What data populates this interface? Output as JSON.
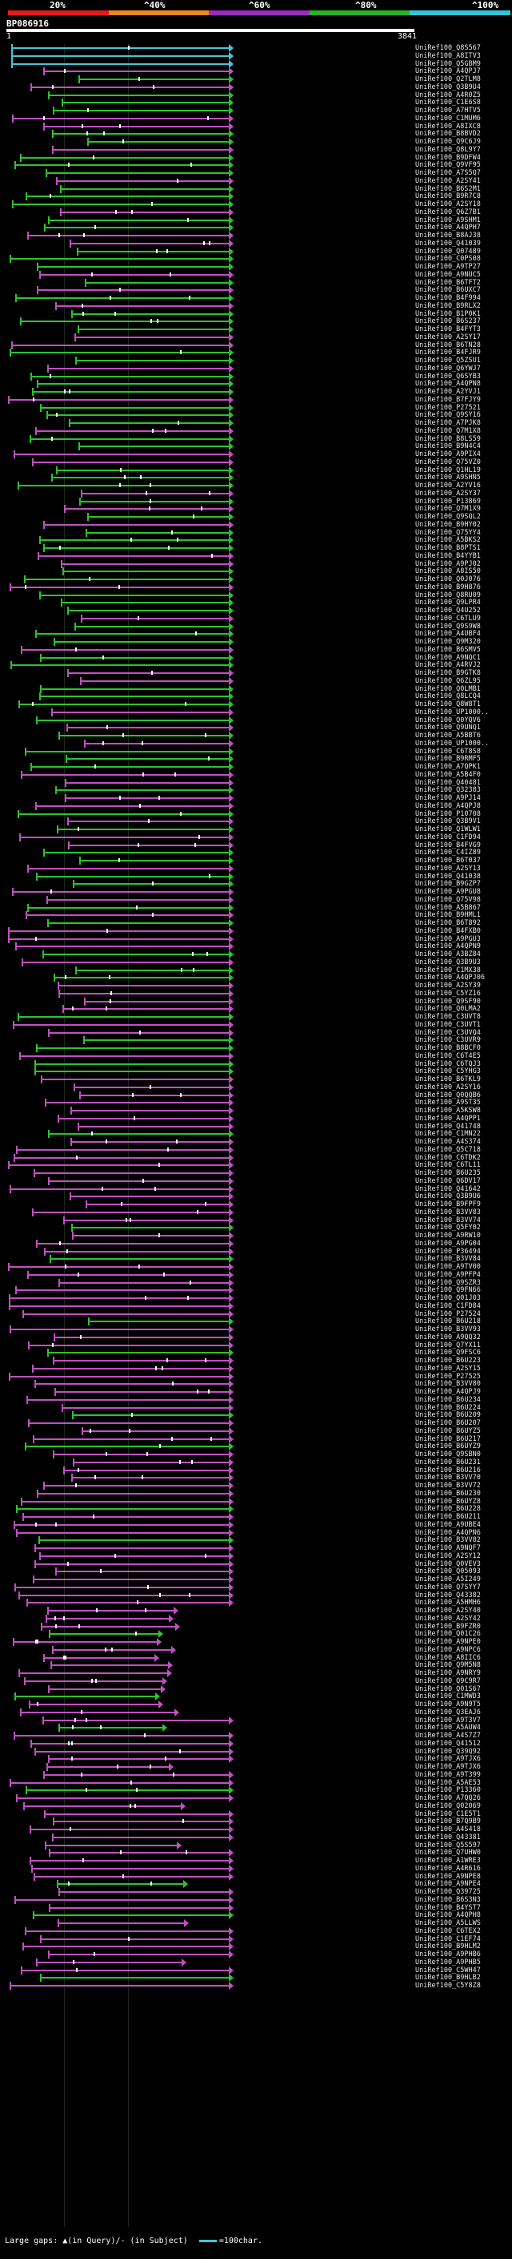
{
  "legend": {
    "labels": [
      "20%",
      "^40%",
      "^60%",
      "^80%",
      "^100%"
    ],
    "colors": [
      "#e21b1b",
      "#e8891c",
      "#9b2bbd",
      "#26b326",
      "#2fc6d8"
    ]
  },
  "query": {
    "title": "BP086916",
    "scale_start": "1",
    "scale_end": "3841"
  },
  "hits": [
    "UniRef100_Q8S567",
    "UniRef100_A8ITV3",
    "UniRef100_Q5GBM9",
    "UniRef100_A4QPJ7",
    "UniRef100_Q2TLM8",
    "UniRef100_Q3B9U4",
    "UniRef100_A4R0Z5",
    "UniRef100_C1E6S8",
    "UniRef100_A7HTV5",
    "UniRef100_C1MUM6",
    "UniRef100_A8IXC8",
    "UniRef100_B8BVD2",
    "UniRef100_Q9C6J9",
    "UniRef100_Q8L9Y7",
    "UniRef100_B9DFW4",
    "UniRef100_Q9VF95",
    "UniRef100_A7S5Q7",
    "UniRef100_A2SY41",
    "UniRef100_B6S2M1",
    "UniRef100_B9R7C8",
    "UniRef100_A2SY18",
    "UniRef100_Q6Z7B1",
    "UniRef100_A9SHM1",
    "UniRef100_A4QPH7",
    "UniRef100_B8AJ38",
    "UniRef100_Q41039",
    "UniRef100_Q07489",
    "UniRef100_C0PS08",
    "UniRef100_A9TP27",
    "UniRef100_A9NUC5",
    "UniRef100_B6TFT2",
    "UniRef100_B6UXC7",
    "UniRef100_B4F994",
    "UniRef100_B9RLX2",
    "UniRef100_B1P0K1",
    "UniRef100_B6S237",
    "UniRef100_B4FYT3",
    "UniRef100_A2SY17",
    "UniRef100_B6TN28",
    "UniRef100_B4FJR9",
    "UniRef100_Q5ZSU1",
    "UniRef100_Q6YWJ7",
    "UniRef100_Q6SYB3",
    "UniRef100_A4QPN8",
    "UniRef100_A2YVJ1",
    "UniRef100_B7FJY9",
    "UniRef100_P27521",
    "UniRef100_Q9SY16",
    "UniRef100_A7PJK8",
    "UniRef100_Q7M1X8",
    "UniRef100_B8LS59",
    "UniRef100_B9N4C4",
    "UniRef100_A9PIX4",
    "UniRef100_Q75VZ0",
    "UniRef100_Q1HL19",
    "UniRef100_A9SHN5",
    "UniRef100_A2YV16",
    "UniRef100_A2SY37",
    "UniRef100_P13869",
    "UniRef100_Q7M1X9",
    "UniRef100_Q9SQL2",
    "UniRef100_B9HY02",
    "UniRef100_Q75YY4",
    "UniRef100_A5BKS2",
    "UniRef100_B8PTS1",
    "UniRef100_B4YYB1",
    "UniRef100_A9PJ02",
    "UniRef100_A8IS50",
    "UniRef100_Q0J076",
    "UniRef100_B9H876",
    "UniRef100_Q8RU09",
    "UniRef100_Q9LPR4",
    "UniRef100_Q4U252",
    "UniRef100_C6TLU9",
    "UniRef100_Q9S9W8",
    "UniRef100_A4UBF4",
    "UniRef100_Q9M320",
    "UniRef100_B6SMV5",
    "UniRef100_A9NQC1",
    "UniRef100_A4RVJ2",
    "UniRef100_B9GTK8",
    "UniRef100_Q6ZL95",
    "UniRef100_Q0LMB1",
    "UniRef100_Q8LCQ4",
    "UniRef100_Q8W8T1",
    "UniRef100_UP1000..",
    "UniRef100_Q0YQV6",
    "UniRef100_Q9UNQ1",
    "UniRef100_A5BBT6",
    "UniRef100_UP1000..",
    "UniRef100_C6T8S8",
    "UniRef100_B9RMF5",
    "UniRef100_A7QPK1",
    "UniRef100_A5B4F0",
    "UniRef100_Q40481",
    "UniRef100_Q32383",
    "UniRef100_A9PJ14",
    "UniRef100_A4QPJ8",
    "UniRef100_P10708",
    "UniRef100_Q3B9V1",
    "UniRef100_Q1WLW1",
    "UniRef100_C1FD94",
    "UniRef100_B4FVG9",
    "UniRef100_C4IZ89",
    "UniRef100_B6T037",
    "UniRef100_A2SY13",
    "UniRef100_Q41038",
    "UniRef100_B9GZP7",
    "UniRef100_A9PGU8",
    "UniRef100_Q75V98",
    "UniRef100_A5B867",
    "UniRef100_B9HML1",
    "UniRef100_B6T892",
    "UniRef100_B4FXB0",
    "UniRef100_A9PGU3",
    "UniRef100_A4QPN9",
    "UniRef100_A3BZ84",
    "UniRef100_Q3B9U3",
    "UniRef100_C1MX38",
    "UniRef100_A4QPJ06",
    "UniRef100_A2SY39",
    "UniRef100_C5YZ16",
    "UniRef100_Q9SF90",
    "UniRef100_Q0LMA2",
    "UniRef100_C3UVT8",
    "UniRef100_C3UVT1",
    "UniRef100_C3UVQ4",
    "UniRef100_C3UVR9",
    "UniRef100_B8BCF0",
    "UniRef100_C6T4E5",
    "UniRef100_C6TQJ3",
    "UniRef100_C5YHG3",
    "UniRef100_B6TKL9",
    "UniRef100_A2SY16",
    "UniRef100_Q0QQB6",
    "UniRef100_A9ST35",
    "UniRef100_A5KSW8",
    "UniRef100_A4QPP1",
    "UniRef100_Q41748",
    "UniRef100_C1MN22",
    "UniRef100_A4S374",
    "UniRef100_Q5C718",
    "UniRef100_C6TDK2",
    "UniRef100_C6TL11",
    "UniRef100_B6U235",
    "UniRef100_Q6DV17",
    "UniRef100_Q41642",
    "UniRef100_Q3B9U6",
    "UniRef100_B9FPF9",
    "UniRef100_B3VV83",
    "UniRef100_B3VV74",
    "UniRef100_Q5FY02",
    "UniRef100_A9RW10",
    "UniRef100_A9PG04",
    "UniRef100_P36494",
    "UniRef100_B3VV84",
    "UniRef100_A9TV00",
    "UniRef100_A9PFP4",
    "UniRef100_Q9SZR3",
    "UniRef100_Q9FN66",
    "UniRef100_Q01J03",
    "UniRef100_C1FD84",
    "UniRef100_P27524",
    "UniRef100_B6U218",
    "UniRef100_B3VV93",
    "UniRef100_A9QQ32",
    "UniRef100_Q7YX11",
    "UniRef100_Q9FSC6",
    "UniRef100_B6U223",
    "UniRef100_A2SY15",
    "UniRef100_P27525",
    "UniRef100_B3VV80",
    "UniRef100_A4QPJ9",
    "UniRef100_B6U234",
    "UniRef100_B6U224",
    "UniRef100_B6U209",
    "UniRef100_B6U207",
    "UniRef100_B6UYZ5",
    "UniRef100_B6U217",
    "UniRef100_B6UYZ9",
    "UniRef100_Q9SBN0",
    "UniRef100_B6U231",
    "UniRef100_B6U216",
    "UniRef100_B3VV70",
    "UniRef100_B3VV72",
    "UniRef100_B6U230",
    "UniRef100_B6UYZ8",
    "UniRef100_B6U228",
    "UniRef100_B6U211",
    "UniRef100_A9UBE4",
    "UniRef100_A4QPN6",
    "UniRef100_B3VV82",
    "UniRef100_A9NQF7",
    "UniRef100_A2SY12",
    "UniRef100_Q0VEV3",
    "UniRef100_Q05093",
    "UniRef100_A5I249",
    "UniRef100_Q7SYY7",
    "UniRef100_Q43382",
    "UniRef100_A5HMH6",
    "UniRef100_A2SY40",
    "UniRef100_A2SY42",
    "UniRef100_B9FZR0",
    "UniRef100_Q01C26",
    "UniRef100_A9NPE0",
    "UniRef100_A9NPC6",
    "UniRef100_A8IIC6",
    "UniRef100_Q9M5N8",
    "UniRef100_A9NRY9",
    "UniRef100_Q9C9R7",
    "UniRef100_Q01S67",
    "UniRef100_C1MWD3",
    "UniRef100_A9N9T5",
    "UniRef100_Q3EAJ6",
    "UniRef100_A9T3V7",
    "UniRef100_A5AUW4",
    "UniRef100_A4S7Z7",
    "UniRef100_Q41512",
    "UniRef100_Q39Q92",
    "UniRef100_A9TJX6",
    "UniRef100_A9TJX6",
    "UniRef100_A9T399",
    "UniRef100_A5AE53",
    "UniRef100_P13360",
    "UniRef100_A7QQ26",
    "UniRef100_Q02069",
    "UniRef100_C1E5T1",
    "UniRef100_B7Q9B9",
    "UniRef100_A4S418",
    "UniRef100_Q43381",
    "UniRef100_Q5S597",
    "UniRef100_Q7UHW0",
    "UniRef100_A1WRE3",
    "UniRef100_A4R616",
    "UniRef100_A9NPE8",
    "UniRef100_A9NPE4",
    "UniRef100_Q39725",
    "UniRef100_B6S3N3",
    "UniRef100_B4YST7",
    "UniRef100_A4QPH8",
    "UniRef100_A5LLWS",
    "UniRef100_C6TEX2",
    "UniRef100_C1EF74",
    "UniRef100_B9HLM2",
    "UniRef100_A9PHB6",
    "UniRef100_A9PHB5",
    "UniRef100_C5WH47",
    "UniRef100_B9HLB2",
    "UniRef100_C5Y8Z8"
  ],
  "footer": {
    "gaps_text": "Large gaps: ▲(in Query)/- (in Subject)",
    "scale_text": "=100char."
  }
}
